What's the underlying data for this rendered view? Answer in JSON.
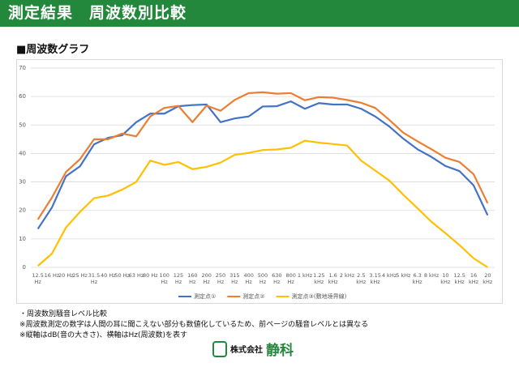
{
  "header": {
    "title": "測定結果　周波数別比較"
  },
  "section_title": "■周波数グラフ",
  "chart_data": {
    "type": "line",
    "categories": [
      "12.5 Hz",
      "16 Hz",
      "20 Hz",
      "25 Hz",
      "31.5 Hz",
      "40 Hz",
      "50 Hz",
      "63 Hz",
      "80 Hz",
      "100 Hz",
      "125 Hz",
      "160 Hz",
      "200 Hz",
      "250 Hz",
      "315 Hz",
      "400 Hz",
      "500 Hz",
      "630 Hz",
      "800 Hz",
      "1 kHz",
      "1.25 kHz",
      "1.6 kHz",
      "2 kHz",
      "2.5 kHz",
      "3.15 kHz",
      "4 kHz",
      "5 kHz",
      "6.3 kHz",
      "8 kHz",
      "10 kHz",
      "12.5 kHz",
      "16 kHz",
      "20 kHz"
    ],
    "series": [
      {
        "name": "測定点①",
        "color": "#4472c4",
        "values": [
          13.5,
          21,
          32,
          35.5,
          43.2,
          45.5,
          46.4,
          51,
          54,
          54,
          56.6,
          57,
          57.2,
          51,
          52.3,
          53,
          56.5,
          56.6,
          58.3,
          55.7,
          57.7,
          57.2,
          57.2,
          55.7,
          53,
          49.5,
          45.2,
          41.5,
          38.8,
          35.6,
          33.8,
          28.8,
          18.3
        ]
      },
      {
        "name": "測定点②",
        "color": "#ed7d31",
        "values": [
          16.8,
          24.5,
          33.5,
          38,
          45,
          45,
          47,
          46,
          53,
          56,
          56.7,
          51,
          56.8,
          55,
          58.8,
          61.2,
          61.5,
          61,
          61.2,
          58.7,
          59.8,
          59.6,
          58.8,
          57.8,
          56,
          51.8,
          47.3,
          44.3,
          41.5,
          38.5,
          37,
          32.7,
          22.5
        ]
      },
      {
        "name": "測定点③(敷地境界線)",
        "color": "#ffc000",
        "values": [
          0.5,
          4.8,
          14,
          19.5,
          24.3,
          25.2,
          27.3,
          30,
          37.5,
          36,
          37,
          34.5,
          35.3,
          36.8,
          39.5,
          40.2,
          41.2,
          41.4,
          42,
          44.5,
          43.8,
          43.3,
          42.8,
          37.5,
          34,
          30.5,
          25.5,
          20.8,
          16,
          12,
          7.8,
          3.2,
          0
        ]
      }
    ],
    "ylim": [
      0,
      70
    ],
    "yticks": [
      0,
      10,
      20,
      30,
      40,
      50,
      60,
      70
    ],
    "grid": true
  },
  "notes": [
    "・周波数別騒音レベル比較",
    "※周波数測定の数字は人間の耳に聞こえない部分も数値化しているため、前ページの騒音レベルとは異なる",
    "※縦軸はdB(音の大きさ)、横軸はHz(周波数)を表す"
  ],
  "logo": {
    "company": "株式会社",
    "name": "静科"
  }
}
